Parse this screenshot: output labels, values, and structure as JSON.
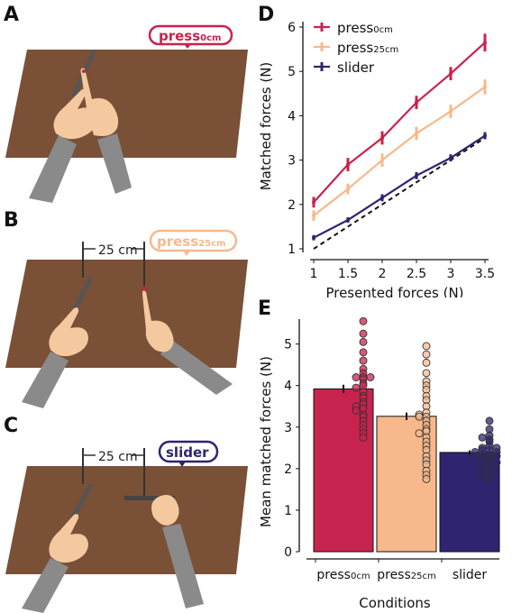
{
  "figure": {
    "panels": {
      "A": {
        "letter": "A",
        "tag": "press0cm",
        "tag_main": "press",
        "tag_sub": "0cm",
        "tag_color": "#c8234e"
      },
      "B": {
        "letter": "B",
        "tag_main": "press",
        "tag_sub": "25cm",
        "distance_label": "25 cm",
        "tag_color": "#f7b98c"
      },
      "C": {
        "letter": "C",
        "tag_main": "slider",
        "distance_label": "25 cm",
        "tag_color": "#2e2470"
      },
      "D": {
        "letter": "D"
      },
      "E": {
        "letter": "E"
      }
    }
  },
  "colors": {
    "press0cm": "#c8234e",
    "press25cm": "#f7b98c",
    "slider": "#2e2470",
    "table": "#7a5037",
    "arm": "#8a8a8a",
    "hand": "#f4c9a0"
  },
  "chart_data": [
    {
      "panel": "D",
      "type": "line",
      "xlabel": "Presented forces (N)",
      "ylabel": "Matched forces (N)",
      "xlim": [
        1,
        3.5
      ],
      "ylim": [
        1,
        6
      ],
      "x": [
        1,
        1.5,
        2,
        2.5,
        3,
        3.5
      ],
      "x_ticks": [
        "1",
        "1.5",
        "2",
        "2.5",
        "3",
        "3.5"
      ],
      "y_ticks": [
        "1",
        "2",
        "3",
        "4",
        "5",
        "6"
      ],
      "legend_position": "top-left",
      "series": [
        {
          "name": "press0cm",
          "label_main": "press",
          "label_sub": "0cm",
          "color": "#c8234e",
          "values": [
            2.05,
            2.9,
            3.5,
            4.3,
            4.95,
            5.65
          ],
          "err": [
            0.12,
            0.15,
            0.15,
            0.15,
            0.15,
            0.2
          ]
        },
        {
          "name": "press25cm",
          "label_main": "press",
          "label_sub": "25cm",
          "color": "#f7b98c",
          "values": [
            1.75,
            2.35,
            3.0,
            3.6,
            4.1,
            4.65
          ],
          "err": [
            0.12,
            0.12,
            0.15,
            0.15,
            0.15,
            0.17
          ]
        },
        {
          "name": "slider",
          "label_main": "slider",
          "label_sub": "",
          "color": "#2e2470",
          "values": [
            1.25,
            1.65,
            2.15,
            2.65,
            3.05,
            3.55
          ],
          "err": [
            0.06,
            0.06,
            0.08,
            0.08,
            0.08,
            0.08
          ]
        }
      ],
      "identity_line": {
        "style": "dashed",
        "from": [
          1,
          1
        ],
        "to": [
          3.5,
          3.5
        ]
      }
    },
    {
      "panel": "E",
      "type": "bar",
      "xlabel": "Conditions",
      "ylabel": "Mean matched forces (N)",
      "ylim": [
        0,
        5.6
      ],
      "y_ticks": [
        "0",
        "1",
        "2",
        "3",
        "4",
        "5"
      ],
      "categories": [
        {
          "main": "press",
          "sub": "0cm"
        },
        {
          "main": "press",
          "sub": "25cm"
        },
        {
          "main": "slider",
          "sub": ""
        }
      ],
      "values": [
        3.92,
        3.26,
        2.39
      ],
      "err": [
        0.1,
        0.09,
        0.05
      ],
      "colors": [
        "#c8234e",
        "#f7b98c",
        "#2e2470"
      ],
      "points": [
        [
          5.55,
          5.25,
          5.05,
          4.8,
          4.6,
          4.4,
          4.3,
          4.2,
          4.2,
          4.2,
          4.15,
          4.05,
          4.0,
          3.95,
          3.85,
          3.75,
          3.7,
          3.6,
          3.55,
          3.5,
          3.45,
          3.4,
          3.3,
          3.25,
          3.15,
          3.05,
          2.95,
          2.85,
          2.75
        ],
        [
          4.95,
          4.75,
          4.55,
          4.3,
          4.1,
          4.0,
          3.9,
          3.75,
          3.65,
          3.5,
          3.35,
          3.3,
          3.25,
          3.25,
          3.15,
          3.05,
          2.95,
          2.9,
          2.85,
          2.75,
          2.65,
          2.55,
          2.45,
          2.3,
          2.2,
          2.1,
          1.95,
          1.85,
          1.75
        ],
        [
          3.15,
          2.95,
          2.8,
          2.75,
          2.7,
          2.65,
          2.55,
          2.5,
          2.5,
          2.45,
          2.45,
          2.4,
          2.4,
          2.35,
          2.3,
          2.3,
          2.25,
          2.2,
          2.2,
          2.15,
          2.1,
          2.05,
          2.0,
          1.95,
          1.9,
          1.85,
          1.8,
          1.75
        ]
      ]
    }
  ]
}
